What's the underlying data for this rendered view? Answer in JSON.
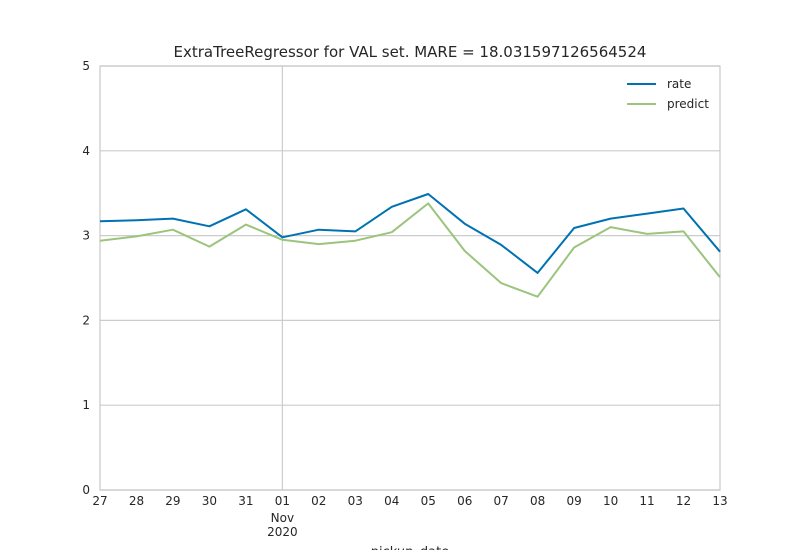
{
  "chart_data": {
    "type": "line",
    "title": "ExtraTreeRegressor for VAL set. MARE = 18.031597126564524",
    "xlabel": "pickup_date",
    "ylabel": "",
    "x": [
      "2020-10-27",
      "2020-10-28",
      "2020-10-29",
      "2020-10-30",
      "2020-10-31",
      "2020-11-01",
      "2020-11-02",
      "2020-11-03",
      "2020-11-04",
      "2020-11-05",
      "2020-11-06",
      "2020-11-07",
      "2020-11-08",
      "2020-11-09",
      "2020-11-10",
      "2020-11-11",
      "2020-11-12",
      "2020-11-13"
    ],
    "x_tick_labels": [
      "27",
      "28",
      "29",
      "30",
      "31",
      "01",
      "02",
      "03",
      "04",
      "05",
      "06",
      "07",
      "08",
      "09",
      "10",
      "11",
      "12",
      "13"
    ],
    "x_secondary_label": {
      "at": "01",
      "lines": [
        "Nov",
        "2020"
      ]
    },
    "ylim": [
      0,
      5
    ],
    "y_ticks": [
      0,
      1,
      2,
      3,
      4,
      5
    ],
    "grid": true,
    "legend_position": "top-right",
    "series": [
      {
        "name": "rate",
        "color": "#0072B2",
        "values": [
          3.17,
          3.18,
          3.2,
          3.11,
          3.31,
          2.98,
          3.07,
          3.05,
          3.34,
          3.49,
          3.14,
          2.89,
          2.56,
          3.09,
          3.2,
          3.26,
          3.32,
          2.81
        ]
      },
      {
        "name": "predict",
        "color": "#9BC47C",
        "values": [
          2.94,
          2.99,
          3.07,
          2.87,
          3.13,
          2.95,
          2.9,
          2.94,
          3.04,
          3.38,
          2.82,
          2.44,
          2.28,
          2.86,
          3.1,
          3.02,
          3.05,
          2.51
        ]
      }
    ],
    "axes_color": "#c8c8c8",
    "grid_color": "#cccccc"
  }
}
